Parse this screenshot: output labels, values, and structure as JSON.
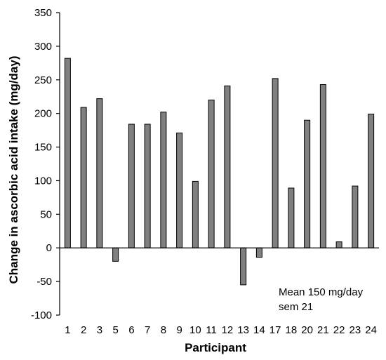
{
  "chart_data": {
    "type": "bar",
    "title": "",
    "xlabel": "Participant",
    "ylabel": "Change in ascorbic acid intake (mg/day)",
    "ylim": [
      -100,
      350
    ],
    "yticks": [
      -100,
      -50,
      0,
      50,
      100,
      150,
      200,
      250,
      300,
      350
    ],
    "categories": [
      "1",
      "2",
      "3",
      "5",
      "6",
      "7",
      "8",
      "9",
      "10",
      "11",
      "12",
      "13",
      "14",
      "17",
      "18",
      "20",
      "21",
      "22",
      "23",
      "24"
    ],
    "values": [
      282,
      209,
      222,
      -20,
      184,
      184,
      202,
      171,
      99,
      220,
      241,
      -55,
      -14,
      252,
      89,
      190,
      243,
      9,
      92,
      199
    ],
    "grid": false,
    "legend": "none",
    "bar_color": "#808080",
    "annotation": [
      "Mean 150 mg/day",
      "sem 21"
    ]
  }
}
